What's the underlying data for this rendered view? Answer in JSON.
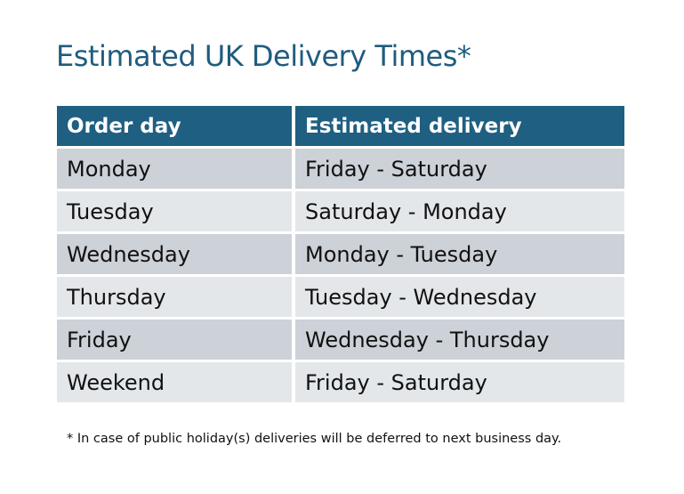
{
  "title": "Estimated UK Delivery Times*",
  "table": {
    "headers": [
      "Order day",
      "Estimated delivery"
    ],
    "rows": [
      [
        "Monday",
        "Friday - Saturday"
      ],
      [
        "Tuesday",
        "Saturday - Monday"
      ],
      [
        "Wednesday",
        "Monday - Tuesday"
      ],
      [
        "Thursday",
        "Tuesday - Wednesday"
      ],
      [
        "Friday",
        "Wednesday - Thursday"
      ],
      [
        "Weekend",
        "Friday - Saturday"
      ]
    ]
  },
  "footnote": "* In case of public holiday(s) deliveries will be deferred to next business day.",
  "colors": {
    "header": "#1f5f82",
    "row_dark": "#cdd1d8",
    "row_light": "#e4e7ea",
    "title": "#1f5c7e"
  }
}
